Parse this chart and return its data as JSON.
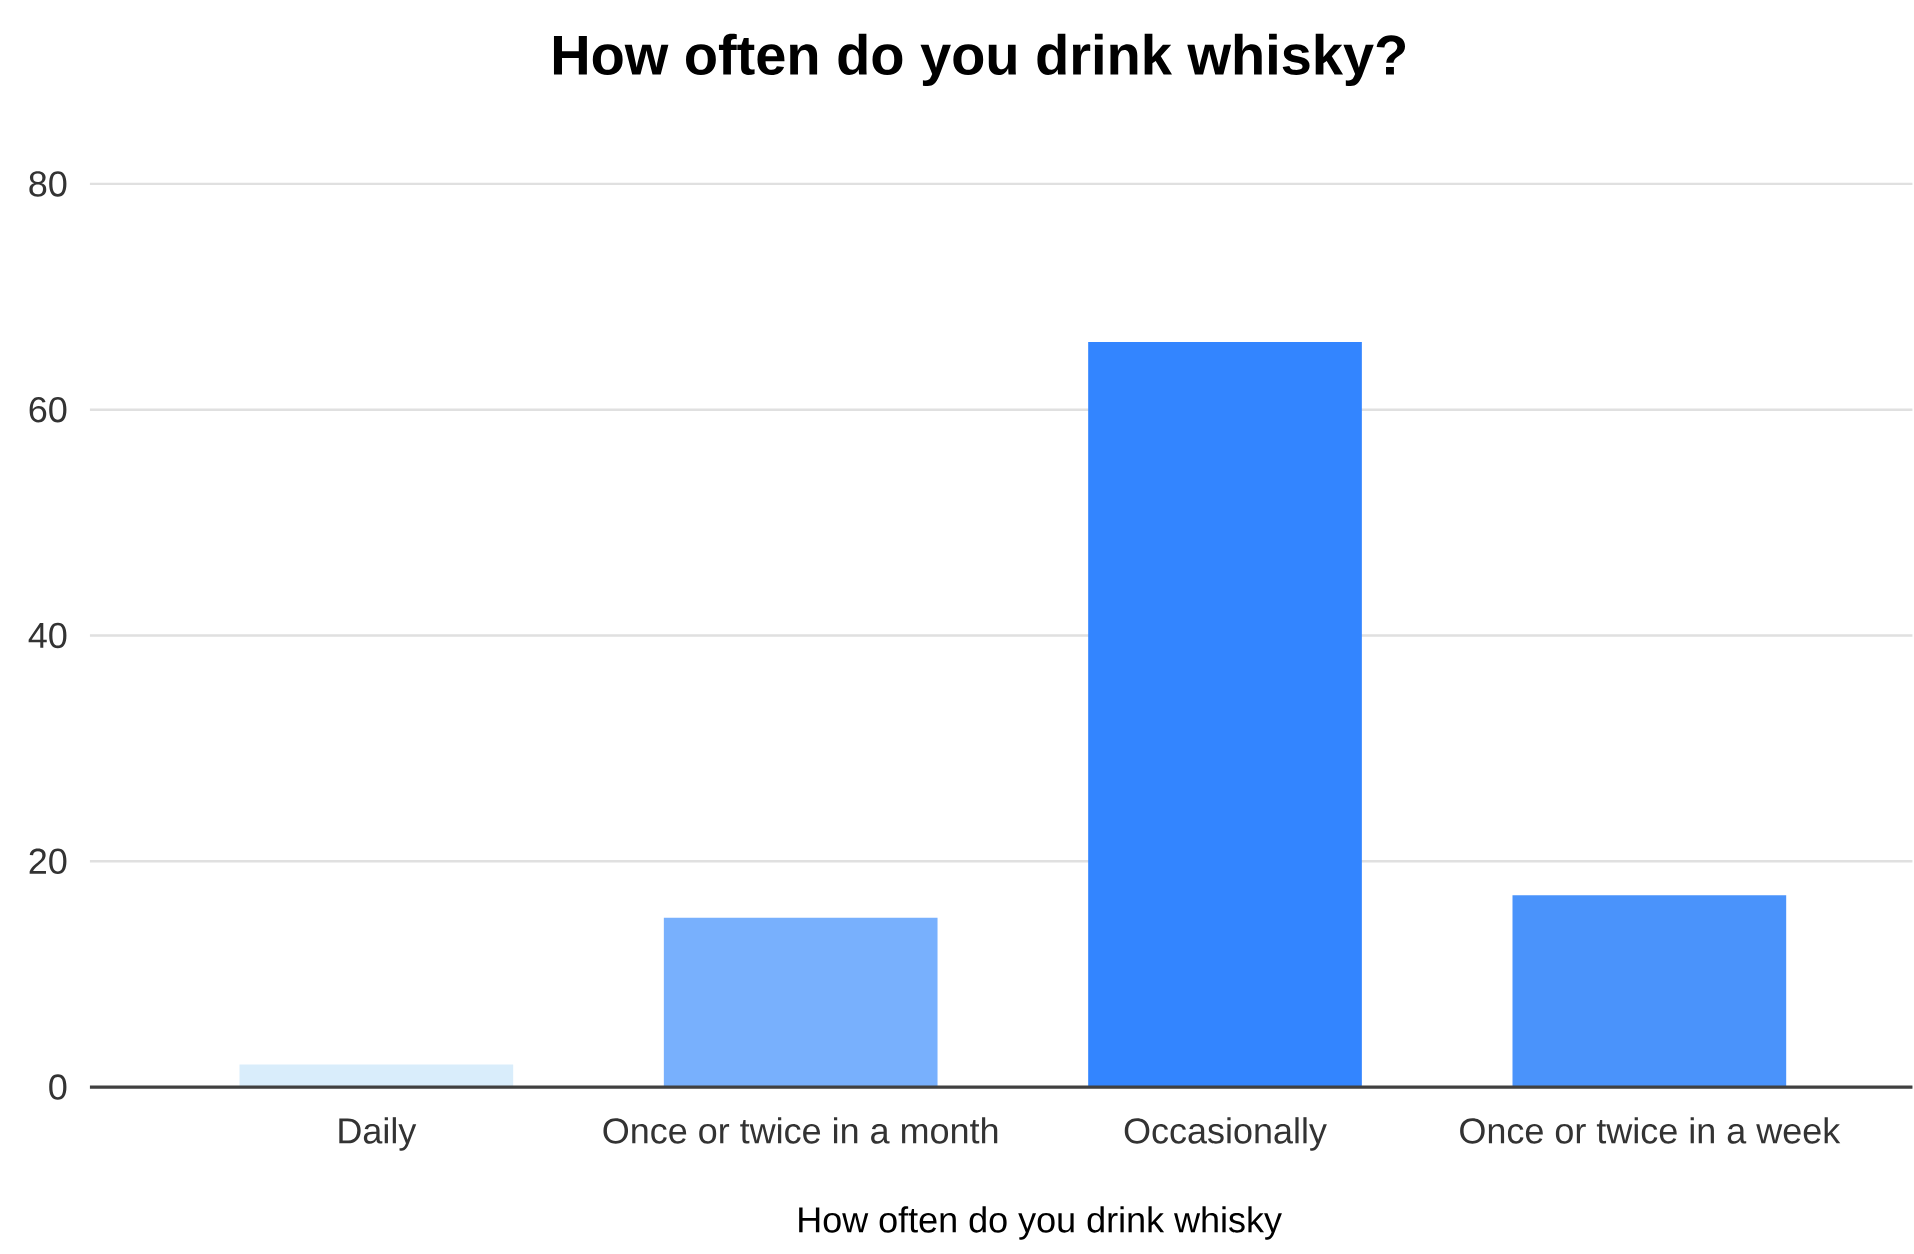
{
  "chart_data": {
    "type": "bar",
    "title": "How often do you drink whisky?",
    "xlabel": "How often do you drink whisky",
    "categories": [
      "Daily",
      "Once or twice in a month",
      "Occasionally",
      "Once or twice in a week"
    ],
    "values": [
      2,
      15,
      66,
      17
    ],
    "colors": [
      "#d9edfb",
      "#78b0fd",
      "#3385ff",
      "#4a93fb"
    ],
    "ylim": [
      0,
      80
    ],
    "yticks": [
      0,
      20,
      40,
      60,
      80
    ],
    "grid": "y"
  }
}
